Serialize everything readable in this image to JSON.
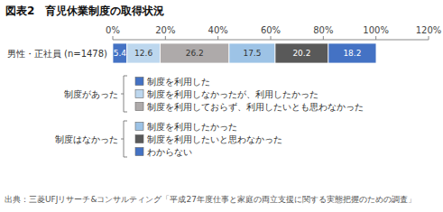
{
  "chart_data": {
    "type": "bar",
    "orientation": "horizontal",
    "stacked": true,
    "data_labels": true,
    "grid": false,
    "title": "図表2　育児休業制度の取得状況",
    "categories": [
      "男性・正社員 (n=1478)"
    ],
    "series": [
      {
        "name": "制度を利用した",
        "color": "#4472C4",
        "values": [
          5.4
        ]
      },
      {
        "name": "制度を利用しなかったが、利用したかった",
        "color": "#BDD7EE",
        "values": [
          12.6
        ]
      },
      {
        "name": "制度を利用しておらず、利用したいとも思わなかった",
        "color": "#AEAAAA",
        "values": [
          26.2
        ]
      },
      {
        "name": "制度を利用したかった",
        "color": "#9DC3E6",
        "values": [
          17.5
        ]
      },
      {
        "name": "制度を利用したいと思わなかった",
        "color": "#595959",
        "values": [
          20.2
        ]
      },
      {
        "name": "わからない",
        "color": "#4472C4",
        "values": [
          18.2
        ]
      }
    ],
    "xlim": [
      0,
      120
    ],
    "xticks": [
      {
        "value": 0,
        "label": "0%"
      },
      {
        "value": 20,
        "label": "20%"
      },
      {
        "value": 40,
        "label": "40%"
      },
      {
        "value": 60,
        "label": "60%"
      },
      {
        "value": 80,
        "label": "80%"
      },
      {
        "value": 100,
        "label": "100%"
      },
      {
        "value": 120,
        "label": "120%"
      }
    ],
    "annotations": [
      "制度があった",
      "制度はなかった"
    ],
    "source": "出典：三菱UFJリサーチ&コンサルティング「平成27年度仕事と家庭の両立支援に関する実態把握のための調査」"
  }
}
